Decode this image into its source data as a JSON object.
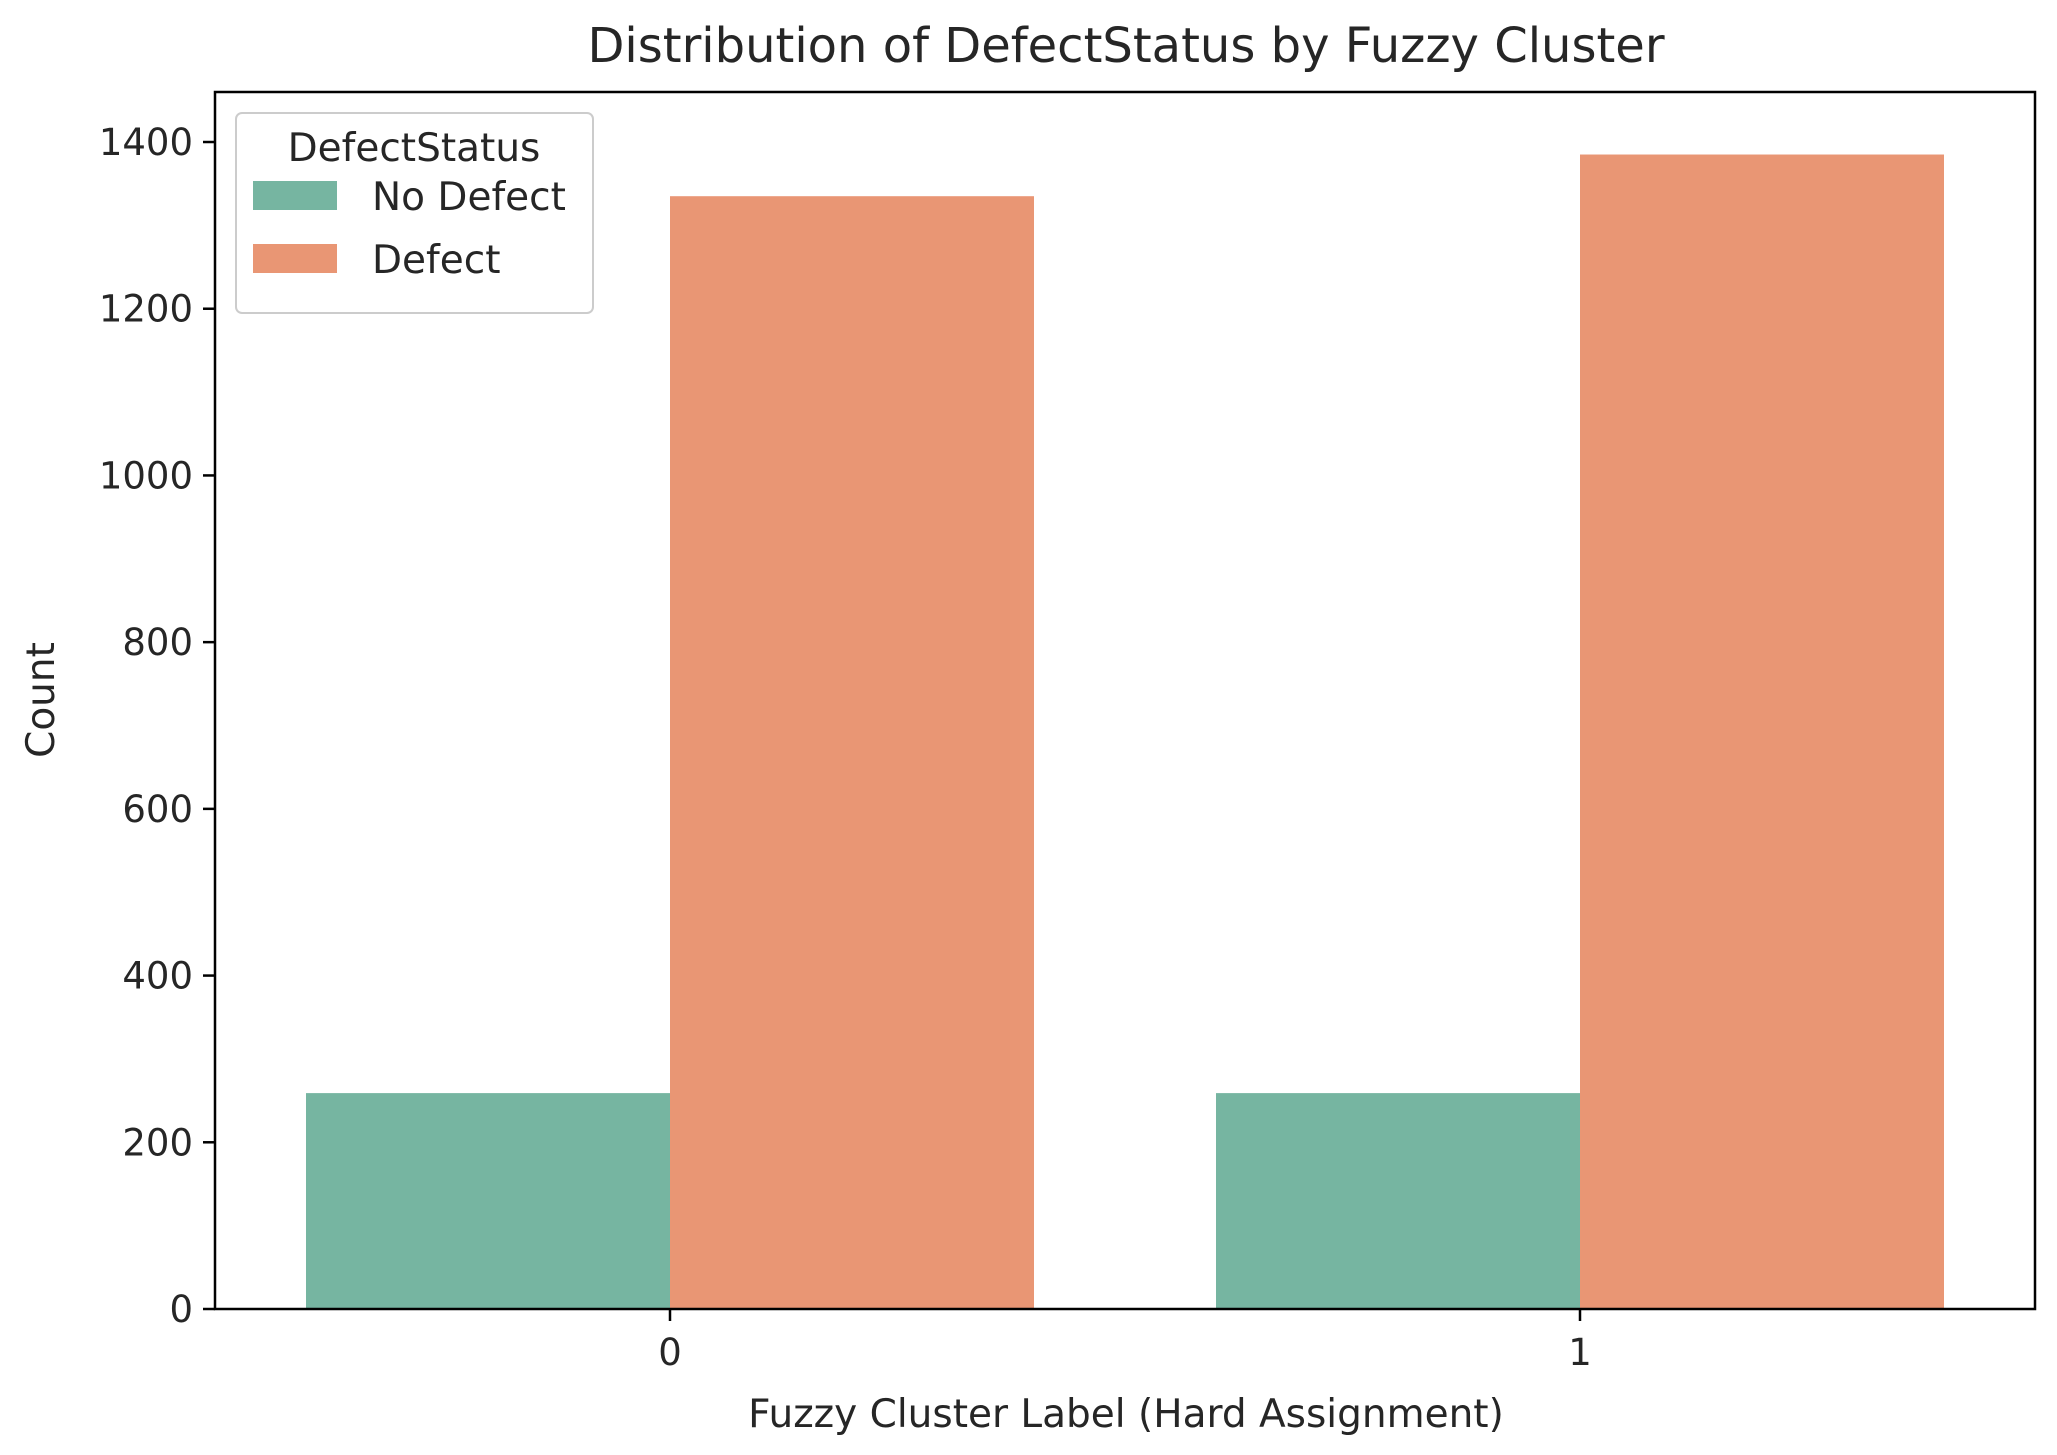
{
  "chart_data": {
    "type": "bar",
    "title": "Distribution of DefectStatus by Fuzzy Cluster",
    "xlabel": "Fuzzy Cluster Label (Hard Assignment)",
    "ylabel": "Count",
    "categories": [
      "0",
      "1"
    ],
    "series": [
      {
        "name": "No Defect",
        "color": "#76b5a1",
        "values": [
          259,
          259
        ]
      },
      {
        "name": "Defect",
        "color": "#e99674",
        "values": [
          1335,
          1385
        ]
      }
    ],
    "ylim": [
      0,
      1460
    ],
    "yticks": [
      0,
      200,
      400,
      600,
      800,
      1000,
      1200,
      1400
    ],
    "grid": false,
    "legend": {
      "title": "DefectStatus",
      "placement": "top-left"
    }
  }
}
